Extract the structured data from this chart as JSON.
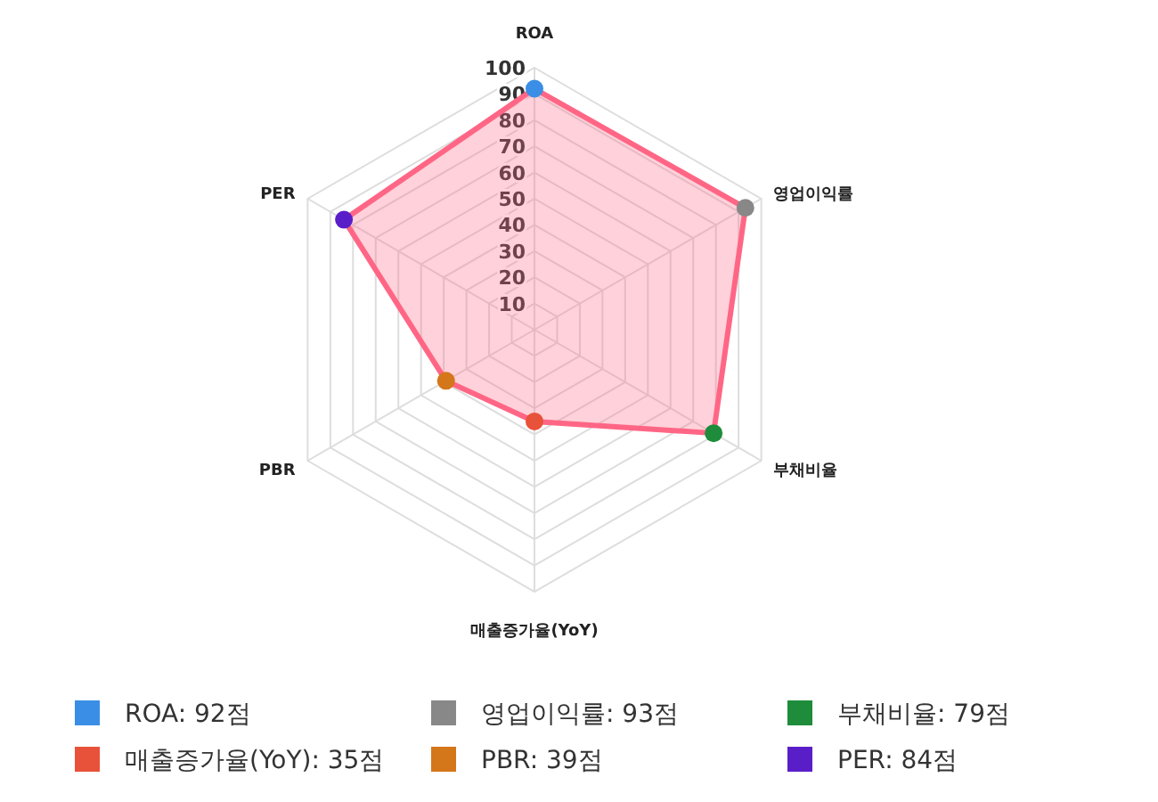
{
  "chart_data": {
    "type": "radar",
    "categories": [
      "ROA",
      "영업이익률",
      "부채비율",
      "매출증가율(YoY)",
      "PBR",
      "PER"
    ],
    "ylim": [
      0,
      100
    ],
    "yticks": [
      10,
      20,
      30,
      40,
      50,
      60,
      70,
      80,
      90,
      100
    ],
    "grid": true,
    "marker": "circle",
    "annotations": [
      "ROA: 92점",
      "영업이익률: 93점",
      "부채비율: 79점",
      "매출증가율(YoY): 35점",
      "PBR: 39점",
      "PER: 84점"
    ],
    "series": [
      {
        "color": "#ff6685",
        "values": [
          92,
          93,
          79,
          35,
          39,
          84
        ],
        "colors": [
          "#3a8ee6",
          "#888888",
          "#1e8c3a",
          "#e8523a",
          "#d4761a",
          "#5a1ec8"
        ]
      }
    ]
  }
}
